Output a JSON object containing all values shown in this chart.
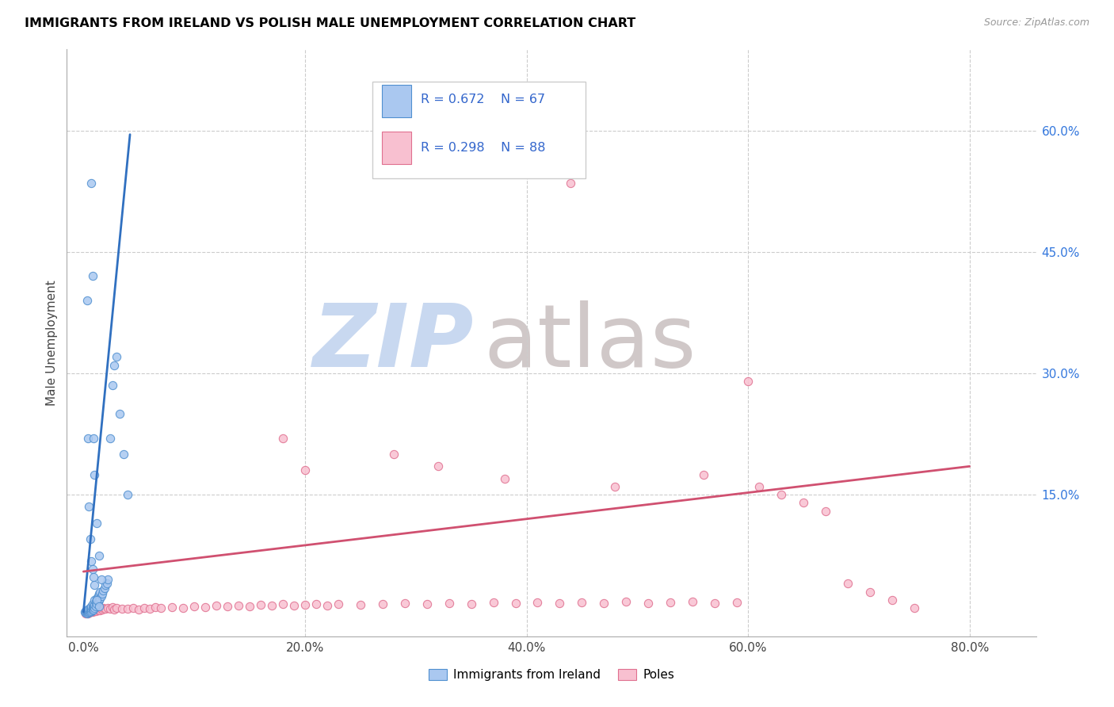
{
  "title": "IMMIGRANTS FROM IRELAND VS POLISH MALE UNEMPLOYMENT CORRELATION CHART",
  "source": "Source: ZipAtlas.com",
  "ylabel": "Male Unemployment",
  "x_tick_labels": [
    "0.0%",
    "20.0%",
    "40.0%",
    "60.0%",
    "80.0%"
  ],
  "x_tick_positions": [
    0.0,
    0.2,
    0.4,
    0.6,
    0.8
  ],
  "y_tick_labels": [
    "15.0%",
    "30.0%",
    "45.0%",
    "60.0%"
  ],
  "y_tick_positions": [
    0.15,
    0.3,
    0.45,
    0.6
  ],
  "xlim": [
    -0.015,
    0.86
  ],
  "ylim": [
    -0.025,
    0.7
  ],
  "blue_R": "R = 0.672",
  "blue_N": "N = 67",
  "pink_R": "R = 0.298",
  "pink_N": "N = 88",
  "blue_fill": "#aac8f0",
  "pink_fill": "#f8c0d0",
  "blue_edge": "#5090d0",
  "pink_edge": "#e07090",
  "blue_line": "#3070c0",
  "pink_line": "#d05070",
  "watermark_zip": "ZIP",
  "watermark_atlas": "atlas",
  "watermark_color_zip": "#c8d8f0",
  "watermark_color_atlas": "#d0c8c8",
  "legend_blue_text_R": "R = 0.672",
  "legend_blue_text_N": "N = 67",
  "legend_pink_text_R": "R = 0.298",
  "legend_pink_text_N": "N = 88",
  "legend_text_color": "#3366cc",
  "blue_trend_x": [
    0.0,
    0.042
  ],
  "blue_trend_y": [
    0.005,
    0.595
  ],
  "pink_trend_x": [
    0.0,
    0.8
  ],
  "pink_trend_y": [
    0.055,
    0.185
  ],
  "blue_x": [
    0.001,
    0.002,
    0.002,
    0.003,
    0.003,
    0.003,
    0.004,
    0.004,
    0.004,
    0.005,
    0.005,
    0.005,
    0.006,
    0.006,
    0.006,
    0.007,
    0.007,
    0.007,
    0.008,
    0.008,
    0.008,
    0.009,
    0.009,
    0.01,
    0.01,
    0.01,
    0.011,
    0.011,
    0.012,
    0.012,
    0.013,
    0.013,
    0.014,
    0.014,
    0.015,
    0.015,
    0.016,
    0.017,
    0.018,
    0.019,
    0.02,
    0.021,
    0.022,
    0.024,
    0.026,
    0.028,
    0.03,
    0.033,
    0.036,
    0.04,
    0.003,
    0.004,
    0.005,
    0.006,
    0.007,
    0.008,
    0.009,
    0.01,
    0.012,
    0.014,
    0.007,
    0.008,
    0.009,
    0.01,
    0.012,
    0.014,
    0.016
  ],
  "blue_y": [
    0.005,
    0.004,
    0.006,
    0.003,
    0.005,
    0.007,
    0.004,
    0.006,
    0.008,
    0.005,
    0.007,
    0.009,
    0.005,
    0.008,
    0.01,
    0.006,
    0.009,
    0.012,
    0.007,
    0.01,
    0.015,
    0.008,
    0.012,
    0.01,
    0.014,
    0.02,
    0.012,
    0.018,
    0.015,
    0.022,
    0.018,
    0.025,
    0.02,
    0.028,
    0.022,
    0.03,
    0.025,
    0.028,
    0.032,
    0.035,
    0.038,
    0.04,
    0.045,
    0.22,
    0.285,
    0.31,
    0.32,
    0.25,
    0.2,
    0.15,
    0.39,
    0.22,
    0.135,
    0.095,
    0.068,
    0.058,
    0.048,
    0.038,
    0.02,
    0.012,
    0.535,
    0.42,
    0.22,
    0.175,
    0.115,
    0.075,
    0.045
  ],
  "pink_x": [
    0.002,
    0.003,
    0.003,
    0.004,
    0.004,
    0.005,
    0.005,
    0.006,
    0.006,
    0.007,
    0.007,
    0.008,
    0.008,
    0.009,
    0.01,
    0.011,
    0.012,
    0.013,
    0.014,
    0.015,
    0.016,
    0.017,
    0.018,
    0.02,
    0.022,
    0.024,
    0.026,
    0.028,
    0.03,
    0.035,
    0.04,
    0.045,
    0.05,
    0.055,
    0.06,
    0.065,
    0.07,
    0.08,
    0.09,
    0.1,
    0.11,
    0.12,
    0.13,
    0.14,
    0.15,
    0.16,
    0.17,
    0.18,
    0.19,
    0.2,
    0.21,
    0.22,
    0.23,
    0.25,
    0.27,
    0.29,
    0.31,
    0.33,
    0.35,
    0.37,
    0.39,
    0.41,
    0.43,
    0.45,
    0.47,
    0.49,
    0.51,
    0.53,
    0.55,
    0.57,
    0.59,
    0.61,
    0.63,
    0.65,
    0.67,
    0.69,
    0.71,
    0.73,
    0.75,
    0.44,
    0.6,
    0.18,
    0.2,
    0.28,
    0.32,
    0.38,
    0.48,
    0.56
  ],
  "pink_y": [
    0.003,
    0.004,
    0.006,
    0.003,
    0.005,
    0.004,
    0.006,
    0.005,
    0.007,
    0.005,
    0.008,
    0.005,
    0.007,
    0.006,
    0.007,
    0.006,
    0.008,
    0.007,
    0.009,
    0.007,
    0.009,
    0.008,
    0.01,
    0.009,
    0.01,
    0.009,
    0.011,
    0.008,
    0.01,
    0.009,
    0.009,
    0.01,
    0.008,
    0.01,
    0.009,
    0.011,
    0.01,
    0.011,
    0.01,
    0.012,
    0.011,
    0.013,
    0.012,
    0.013,
    0.012,
    0.014,
    0.013,
    0.015,
    0.013,
    0.014,
    0.015,
    0.013,
    0.015,
    0.014,
    0.015,
    0.016,
    0.015,
    0.016,
    0.015,
    0.017,
    0.016,
    0.017,
    0.016,
    0.017,
    0.016,
    0.018,
    0.016,
    0.017,
    0.018,
    0.016,
    0.017,
    0.16,
    0.15,
    0.14,
    0.13,
    0.04,
    0.03,
    0.02,
    0.01,
    0.535,
    0.29,
    0.22,
    0.18,
    0.2,
    0.185,
    0.17,
    0.16,
    0.175
  ]
}
